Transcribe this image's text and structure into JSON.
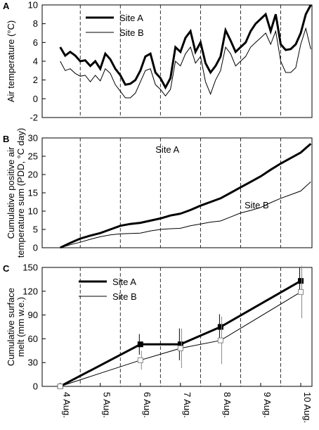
{
  "chart_data": [
    {
      "type": "line",
      "panel_label": "A",
      "ylabel": [
        "Air temperature (°C)"
      ],
      "xlim": [
        3.55,
        10.28
      ],
      "ylim": [
        -2,
        10
      ],
      "yticks": [
        -2,
        0,
        2,
        4,
        6,
        8,
        10
      ],
      "vlines": [
        4.5,
        5.5,
        6.5,
        7.5,
        8.5,
        9.5
      ],
      "legend": "upper left",
      "x": [
        4,
        4.125,
        4.25,
        4.375,
        4.5,
        4.625,
        4.75,
        4.875,
        5,
        5.125,
        5.25,
        5.375,
        5.5,
        5.625,
        5.75,
        5.875,
        6,
        6.125,
        6.25,
        6.375,
        6.5,
        6.625,
        6.75,
        6.875,
        7,
        7.125,
        7.25,
        7.375,
        7.5,
        7.625,
        7.75,
        7.875,
        8,
        8.125,
        8.25,
        8.375,
        8.5,
        8.625,
        8.75,
        8.875,
        9,
        9.125,
        9.25,
        9.375,
        9.5,
        9.625,
        9.75,
        9.875,
        10,
        10.125,
        10.25
      ],
      "series": [
        {
          "name": "Site A",
          "color": "#000000",
          "width": 3,
          "values": [
            5.5,
            4.6,
            5.0,
            4.6,
            4.0,
            4.1,
            3.5,
            4.0,
            3.2,
            4.8,
            4.2,
            3.2,
            2.5,
            1.5,
            1.6,
            2.0,
            3.0,
            4.5,
            4.8,
            2.8,
            2.2,
            1.2,
            2.2,
            5.5,
            5.0,
            6.5,
            7.2,
            5.0,
            6.0,
            3.8,
            2.8,
            3.5,
            4.5,
            7.3,
            6.2,
            5.0,
            5.5,
            6.0,
            7.2,
            8.0,
            8.5,
            9.0,
            7.2,
            9.0,
            5.8,
            5.2,
            5.3,
            5.8,
            7.0,
            9.0,
            10.0
          ]
        },
        {
          "name": "Site B",
          "color": "#000000",
          "width": 1,
          "values": [
            4.0,
            3.0,
            3.2,
            2.7,
            2.4,
            2.5,
            1.8,
            2.5,
            1.9,
            3.2,
            2.7,
            1.5,
            0.8,
            0.1,
            0.1,
            0.6,
            1.8,
            3.0,
            3.2,
            1.5,
            1.0,
            0.3,
            1.0,
            4.0,
            3.5,
            4.8,
            5.5,
            3.8,
            4.5,
            1.8,
            0.5,
            2.0,
            3.0,
            5.5,
            4.8,
            3.5,
            4.0,
            4.5,
            5.5,
            6.0,
            6.5,
            7.0,
            5.8,
            7.2,
            4.0,
            2.8,
            2.8,
            3.3,
            5.8,
            7.5,
            5.3
          ]
        }
      ]
    },
    {
      "type": "line",
      "panel_label": "B",
      "ylabel": [
        "Cumulative positive air",
        "temperature sum (PDD, °C day)"
      ],
      "xlim": [
        3.55,
        10.28
      ],
      "ylim": [
        0,
        30
      ],
      "yticks": [
        0,
        5,
        10,
        15,
        20,
        25,
        30
      ],
      "vlines": [
        4.5,
        5.5,
        6.5,
        7.5,
        8.5,
        9.5
      ],
      "annotations": [
        "Site A",
        "Site B"
      ],
      "x": [
        4,
        4.25,
        4.5,
        4.75,
        5,
        5.25,
        5.5,
        5.75,
        6,
        6.25,
        6.5,
        6.75,
        7,
        7.25,
        7.5,
        7.75,
        8,
        8.25,
        8.5,
        8.75,
        9,
        9.25,
        9.5,
        9.75,
        10,
        10.25
      ],
      "series": [
        {
          "color": "#000000",
          "width": 3,
          "values": [
            0,
            1.3,
            2.5,
            3.3,
            4.0,
            5.0,
            6.0,
            6.5,
            6.8,
            7.4,
            8.0,
            8.8,
            9.3,
            10.3,
            11.5,
            12.5,
            13.5,
            15.0,
            16.5,
            18.0,
            19.5,
            21.3,
            23.0,
            24.5,
            26.0,
            28.4
          ]
        },
        {
          "color": "#000000",
          "width": 1,
          "values": [
            0,
            0.8,
            1.5,
            2.3,
            3.0,
            3.5,
            3.8,
            3.9,
            4.0,
            4.6,
            5.0,
            5.2,
            5.3,
            6.0,
            6.5,
            7.0,
            7.3,
            8.4,
            9.5,
            10.2,
            11.0,
            12.3,
            13.5,
            14.5,
            15.5,
            18.0
          ]
        }
      ]
    },
    {
      "type": "line",
      "panel_label": "C",
      "ylabel": [
        "Cumulative surface",
        "melt (mm w.e.)"
      ],
      "xlim": [
        3.55,
        10.28
      ],
      "ylim": [
        0,
        150
      ],
      "yticks": [
        0,
        30,
        60,
        90,
        120,
        150
      ],
      "vlines": [
        4.5,
        5.5,
        6.5,
        7.5,
        8.5,
        9.5
      ],
      "legend": "upper left",
      "xticks": [
        {
          "value": 4,
          "label": "4 Aug."
        },
        {
          "value": 5,
          "label": "5 Aug."
        },
        {
          "value": 6,
          "label": "6 Aug."
        },
        {
          "value": 7,
          "label": "7 Aug."
        },
        {
          "value": 8,
          "label": "8 Aug."
        },
        {
          "value": 9,
          "label": "9 Aug."
        },
        {
          "value": 10,
          "label": "10 Aug."
        }
      ],
      "x": [
        4,
        6,
        7,
        8,
        10
      ],
      "series": [
        {
          "name": "Site A",
          "color": "#000000",
          "width": 3,
          "marker_fill": "#000000",
          "values": [
            0,
            53,
            53,
            75,
            133
          ],
          "errors": [
            null,
            13,
            20,
            16,
            17
          ]
        },
        {
          "name": "Site B",
          "color": "#000000",
          "width": 1,
          "marker_fill": "#ffffff",
          "values": [
            0,
            33,
            48,
            58,
            119
          ],
          "errors": [
            null,
            12,
            25,
            30,
            33
          ]
        }
      ]
    }
  ]
}
